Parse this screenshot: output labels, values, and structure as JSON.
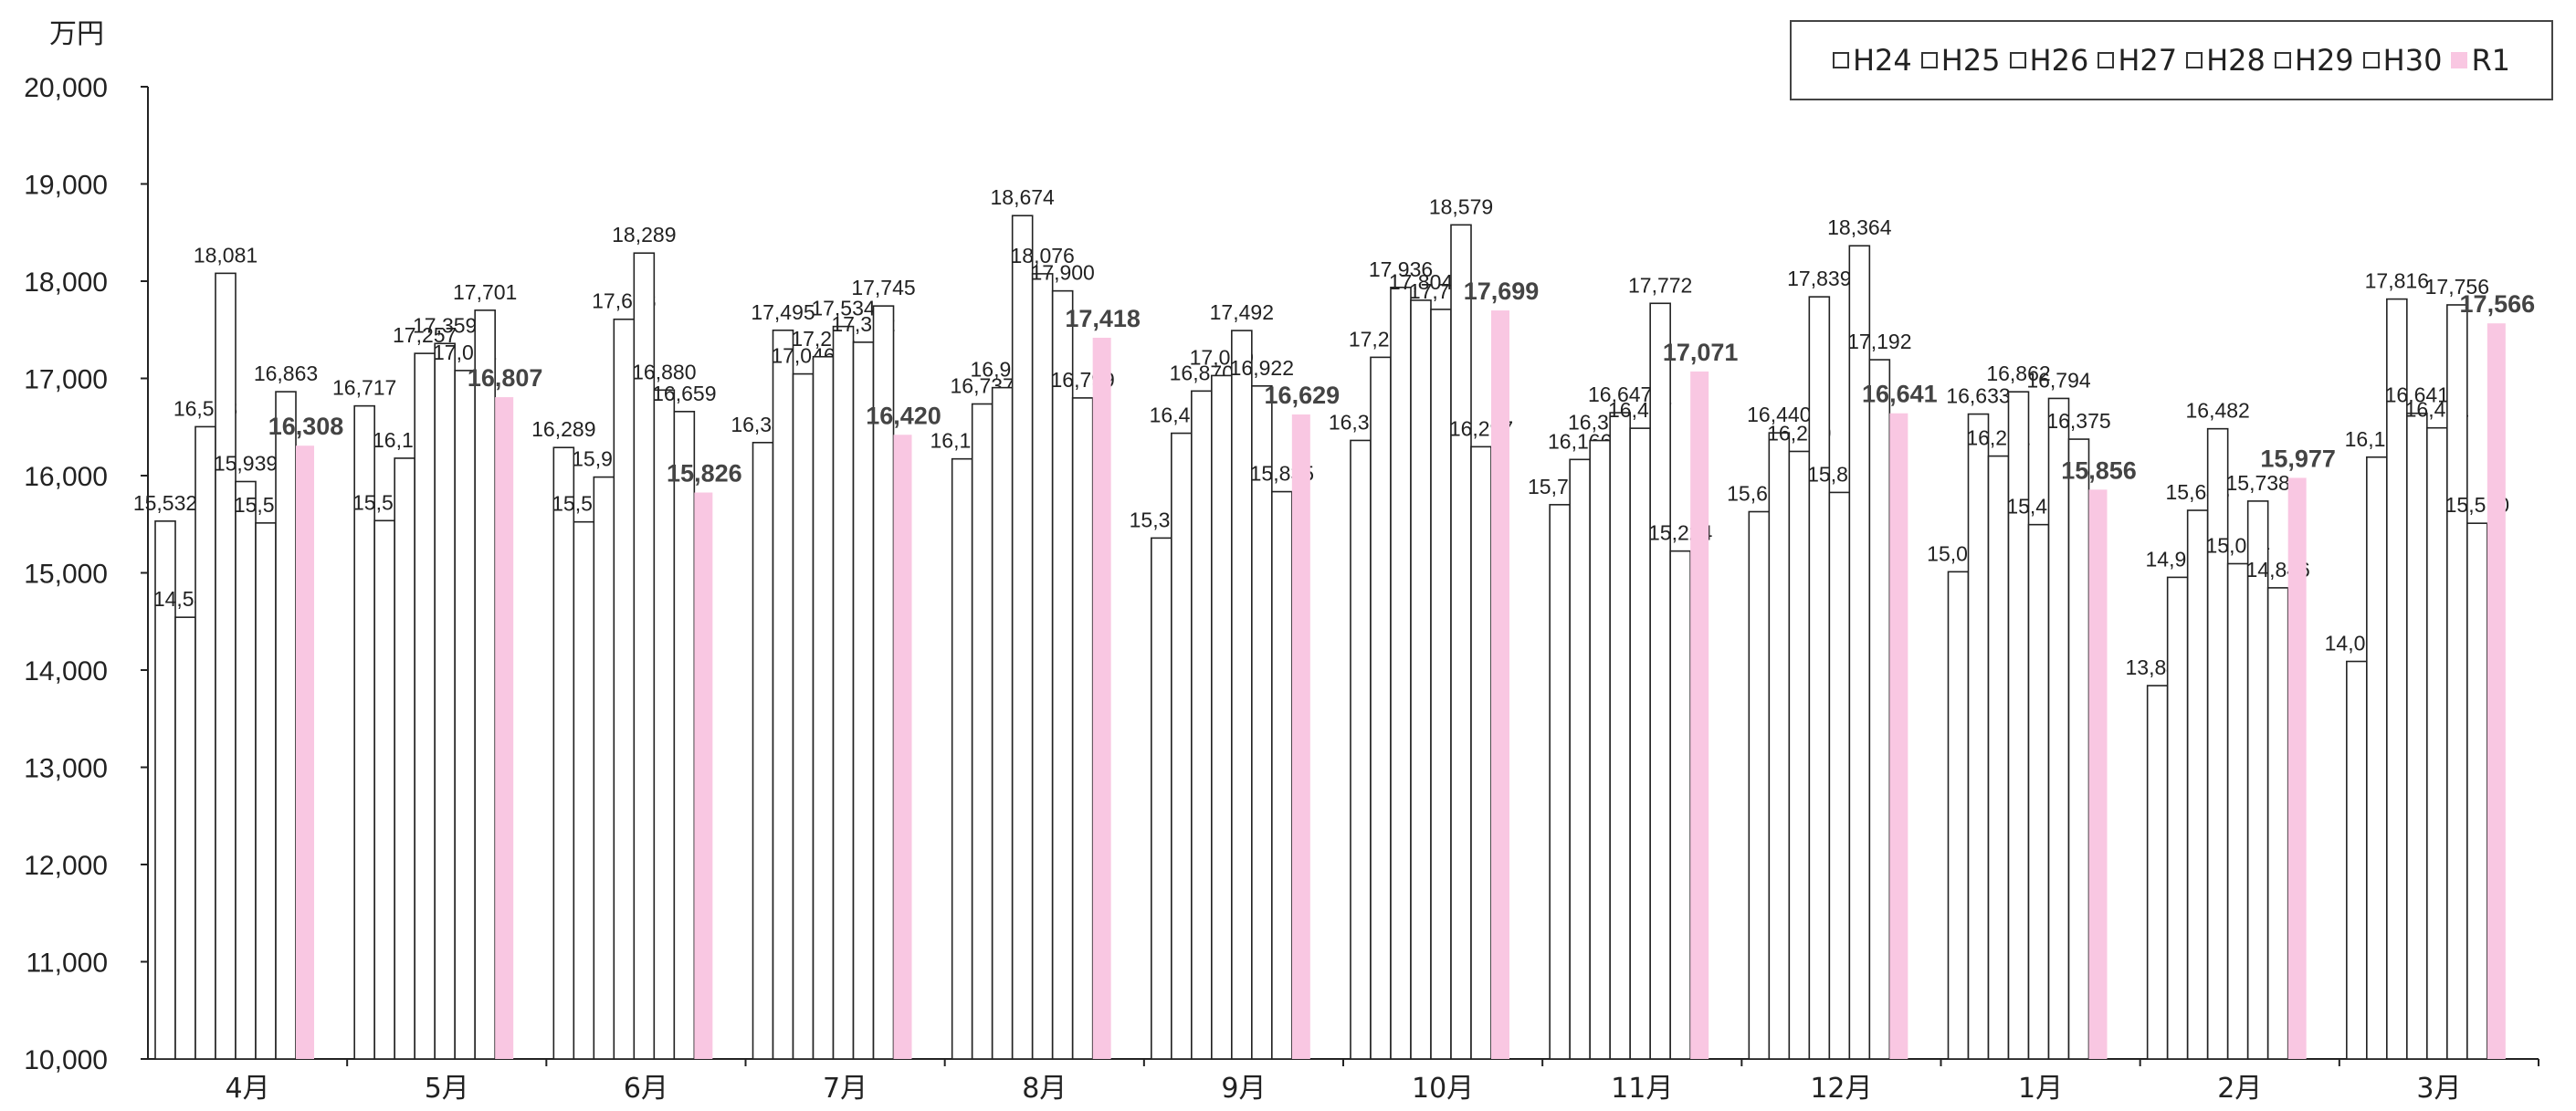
{
  "chart_data": {
    "type": "bar",
    "unit_label": "万円",
    "categories": [
      "4月",
      "5月",
      "6月",
      "7月",
      "8月",
      "9月",
      "10月",
      "11月",
      "12月",
      "1月",
      "2月",
      "3月"
    ],
    "ylim": [
      10000,
      20000
    ],
    "yticks": [
      "10,000",
      "11,000",
      "12,000",
      "13,000",
      "14,000",
      "15,000",
      "16,000",
      "17,000",
      "18,000",
      "19,000",
      "20,000"
    ],
    "legend_position": "top-right",
    "series": [
      {
        "name": "H24",
        "color": "#ffffff",
        "values": [
          15532,
          16717,
          16289,
          16340,
          16172,
          15358,
          16362,
          15701,
          15629,
          15011,
          13840,
          14089
        ]
      },
      {
        "name": "H25",
        "color": "#ffffff",
        "values": [
          14543,
          15537,
          15524,
          17495,
          16737,
          16436,
          17217,
          16166,
          16440,
          16633,
          14954,
          16190
        ]
      },
      {
        "name": "H26",
        "color": "#ffffff",
        "values": [
          16503,
          16179,
          15985,
          17046,
          16905,
          16870,
          17936,
          16361,
          16249,
          16201,
          15643,
          17816
        ]
      },
      {
        "name": "H27",
        "color": "#ffffff",
        "values": [
          18081,
          17257,
          17608,
          17223,
          18674,
          17029,
          17804,
          16647,
          17839,
          16862,
          16482,
          16641
        ]
      },
      {
        "name": "H28",
        "color": "#ffffff",
        "values": [
          15939,
          17359,
          18289,
          17534,
          18076,
          17492,
          17710,
          16487,
          15827,
          15496,
          15094,
          16491
        ]
      },
      {
        "name": "H29",
        "color": "#ffffff",
        "values": [
          15513,
          17081,
          16880,
          17372,
          17900,
          16922,
          18579,
          17772,
          18364,
          16794,
          15738,
          17756
        ]
      },
      {
        "name": "H30",
        "color": "#ffffff",
        "values": [
          16863,
          17701,
          16659,
          17745,
          16799,
          15835,
          16297,
          15224,
          17192,
          16375,
          14846,
          15510
        ]
      },
      {
        "name": "R1",
        "color": "#f9c7e2",
        "values": [
          16308,
          16807,
          15826,
          16420,
          17418,
          16629,
          17699,
          17071,
          16641,
          15856,
          15977,
          17566
        ]
      }
    ],
    "value_labels": [
      [
        "15,532",
        "16,717",
        "16,289",
        "16,340",
        "16,172",
        "15,358",
        "16,362",
        "15,701",
        "15,629",
        "15,011",
        "13,840",
        "14,089"
      ],
      [
        "14,543",
        "15,537",
        "15,524",
        "17,495",
        "16,737",
        "16,436",
        "17,217",
        "16,166",
        "16,440",
        "16,633",
        "14,954",
        "16,190"
      ],
      [
        "16,503",
        "16,179",
        "15,985",
        "17,046",
        "16,905",
        "16,870",
        "17,936",
        "16,361",
        "16,249",
        "16,201",
        "15,643",
        "17,816"
      ],
      [
        "18,081",
        "17,257",
        "17,608",
        "17,223",
        "18,674",
        "17,029",
        "17,804",
        "16,647",
        "17,839",
        "16,862",
        "16,482",
        "16,641"
      ],
      [
        "15,939",
        "17,359",
        "18,289",
        "17,534",
        "18,076",
        "17,492",
        "17,710",
        "16,487",
        "15,827",
        "15,496",
        "15,094",
        "16,491"
      ],
      [
        "15,513",
        "17,081",
        "16,880",
        "17,372",
        "17,900",
        "16,922",
        "18,579",
        "17,772",
        "18,364",
        "16,794",
        "15,738",
        "17,756"
      ],
      [
        "16,863",
        "17,701",
        "16,659",
        "17,745",
        "16,799",
        "15,835",
        "16,297",
        "15,224",
        "17,192",
        "16,375",
        "14,846",
        "15,510"
      ],
      [
        "16,308",
        "16,807",
        "15,826",
        "16,420",
        "17,418",
        "16,629",
        "17,699",
        "17,071",
        "16,641",
        "15,856",
        "15,977",
        "17,566"
      ]
    ]
  }
}
